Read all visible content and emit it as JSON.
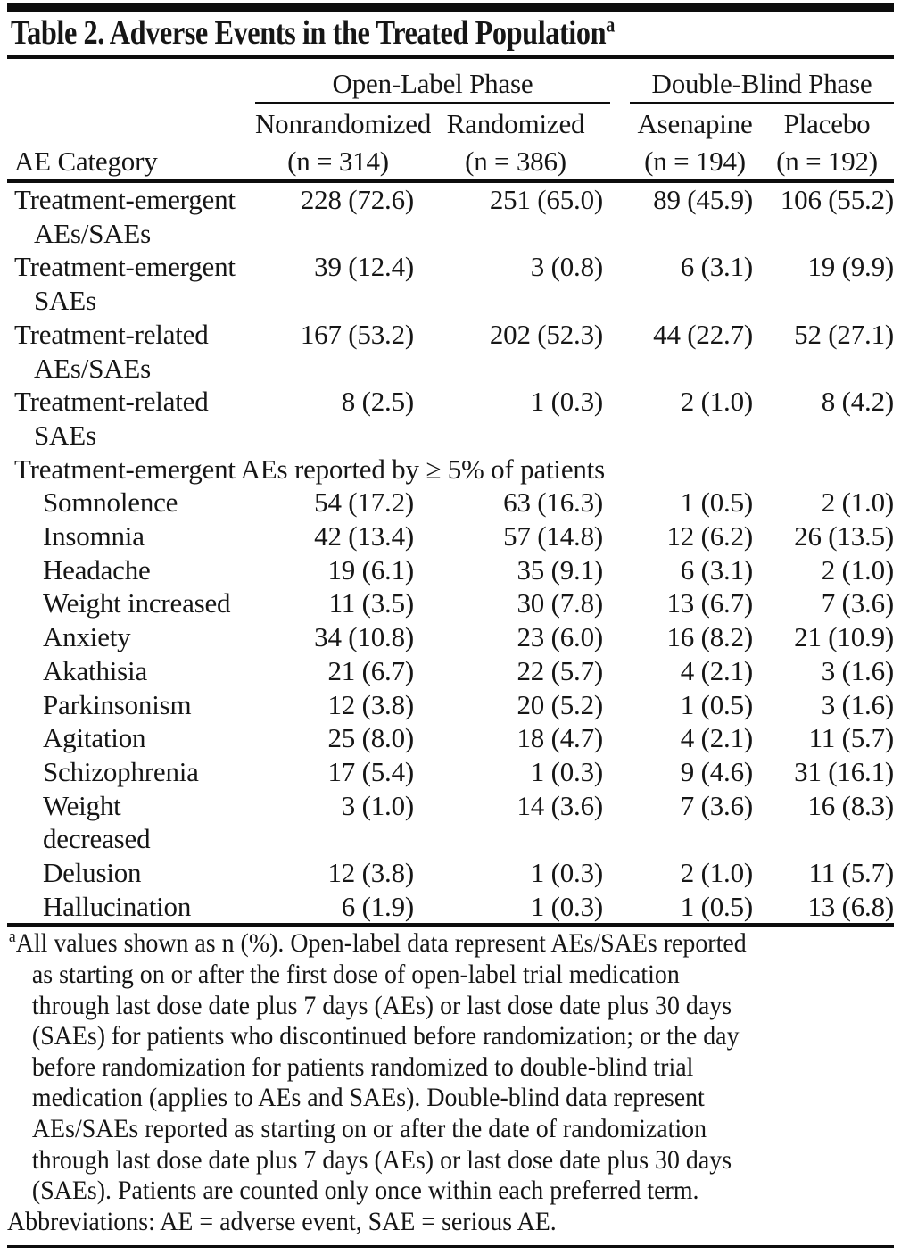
{
  "title": {
    "text": "Table 2. Adverse Events in the Treated Population",
    "superscript": "a"
  },
  "header": {
    "category_label": "AE Category",
    "groups": [
      {
        "label": "Open-Label Phase",
        "columns": [
          {
            "name": "Nonrandomized",
            "n": "(n = 314)"
          },
          {
            "name": "Randomized",
            "n": "(n = 386)"
          }
        ]
      },
      {
        "label": "Double-Blind Phase",
        "columns": [
          {
            "name": "Asenapine",
            "n": "(n = 194)"
          },
          {
            "name": "Placebo",
            "n": "(n = 192)"
          }
        ]
      }
    ]
  },
  "table": {
    "rows": [
      {
        "label": "Treatment-emergent",
        "label2": "AEs/SAEs",
        "indent": false,
        "values": [
          "228 (72.6)",
          "251 (65.0)",
          "89 (45.9)",
          "106 (55.2)"
        ]
      },
      {
        "label": "Treatment-emergent",
        "label2": "SAEs",
        "indent": false,
        "values": [
          "39 (12.4)",
          "3 (0.8)",
          "6 (3.1)",
          "19 (9.9)"
        ]
      },
      {
        "label": "Treatment-related",
        "label2": "AEs/SAEs",
        "indent": false,
        "values": [
          "167 (53.2)",
          "202 (52.3)",
          "44 (22.7)",
          "52 (27.1)"
        ]
      },
      {
        "label": "Treatment-related",
        "label2": "SAEs",
        "indent": false,
        "values": [
          "8 (2.5)",
          "1 (0.3)",
          "2 (1.0)",
          "8 (4.2)"
        ]
      },
      {
        "section": "Treatment-emergent AEs reported by ≥ 5% of patients"
      },
      {
        "label": "Somnolence",
        "indent": true,
        "values": [
          "54 (17.2)",
          "63 (16.3)",
          "1 (0.5)",
          "2 (1.0)"
        ]
      },
      {
        "label": "Insomnia",
        "indent": true,
        "values": [
          "42 (13.4)",
          "57 (14.8)",
          "12 (6.2)",
          "26 (13.5)"
        ]
      },
      {
        "label": "Headache",
        "indent": true,
        "values": [
          "19 (6.1)",
          "35 (9.1)",
          "6 (3.1)",
          "2 (1.0)"
        ]
      },
      {
        "label": "Weight increased",
        "indent": true,
        "values": [
          "11 (3.5)",
          "30 (7.8)",
          "13 (6.7)",
          "7 (3.6)"
        ]
      },
      {
        "label": "Anxiety",
        "indent": true,
        "values": [
          "34 (10.8)",
          "23 (6.0)",
          "16 (8.2)",
          "21 (10.9)"
        ]
      },
      {
        "label": "Akathisia",
        "indent": true,
        "values": [
          "21 (6.7)",
          "22 (5.7)",
          "4 (2.1)",
          "3 (1.6)"
        ]
      },
      {
        "label": "Parkinsonism",
        "indent": true,
        "values": [
          "12 (3.8)",
          "20 (5.2)",
          "1 (0.5)",
          "3 (1.6)"
        ]
      },
      {
        "label": "Agitation",
        "indent": true,
        "values": [
          "25 (8.0)",
          "18 (4.7)",
          "4 (2.1)",
          "11 (5.7)"
        ]
      },
      {
        "label": "Schizophrenia",
        "indent": true,
        "values": [
          "17 (5.4)",
          "1 (0.3)",
          "9 (4.6)",
          "31 (16.1)"
        ]
      },
      {
        "label": "Weight",
        "label2": "decreased",
        "indent": true,
        "values": [
          "3 (1.0)",
          "14 (3.6)",
          "7 (3.6)",
          "16 (8.3)"
        ]
      },
      {
        "label": "Delusion",
        "indent": true,
        "values": [
          "12 (3.8)",
          "1 (0.3)",
          "2 (1.0)",
          "11 (5.7)"
        ]
      },
      {
        "label": "Hallucination",
        "indent": true,
        "values": [
          "6 (1.9)",
          "1 (0.3)",
          "1 (0.5)",
          "13 (6.8)"
        ]
      }
    ]
  },
  "footnote": {
    "lines": [
      {
        "sup": "a",
        "text": "All values shown as n (%). Open-label data represent AEs/SAEs reported",
        "style": "first"
      },
      {
        "text": "as starting on or after the first dose of open-label trial medication",
        "style": "indent"
      },
      {
        "text": "through last dose date plus 7 days (AEs) or last dose date plus 30 days",
        "style": "indent"
      },
      {
        "text": "(SAEs) for patients who discontinued before randomization; or the day",
        "style": "indent"
      },
      {
        "text": "before randomization for patients randomized to double-blind trial",
        "style": "indent"
      },
      {
        "text": "medication (applies to AEs and SAEs). Double-blind data represent",
        "style": "indent"
      },
      {
        "text": "AEs/SAEs reported as starting on or after the date of randomization",
        "style": "indent"
      },
      {
        "text": "through last dose date plus 7 days (AEs) or last dose date plus 30 days",
        "style": "indent"
      },
      {
        "text": "(SAEs). Patients are counted only once within each preferred term.",
        "style": "indent"
      },
      {
        "text": "Abbreviations: AE = adverse event, SAE = serious AE.",
        "style": "flush"
      }
    ]
  },
  "colors": {
    "text": "#161616",
    "rule": "#0d0d0d",
    "background": "#ffffff"
  }
}
